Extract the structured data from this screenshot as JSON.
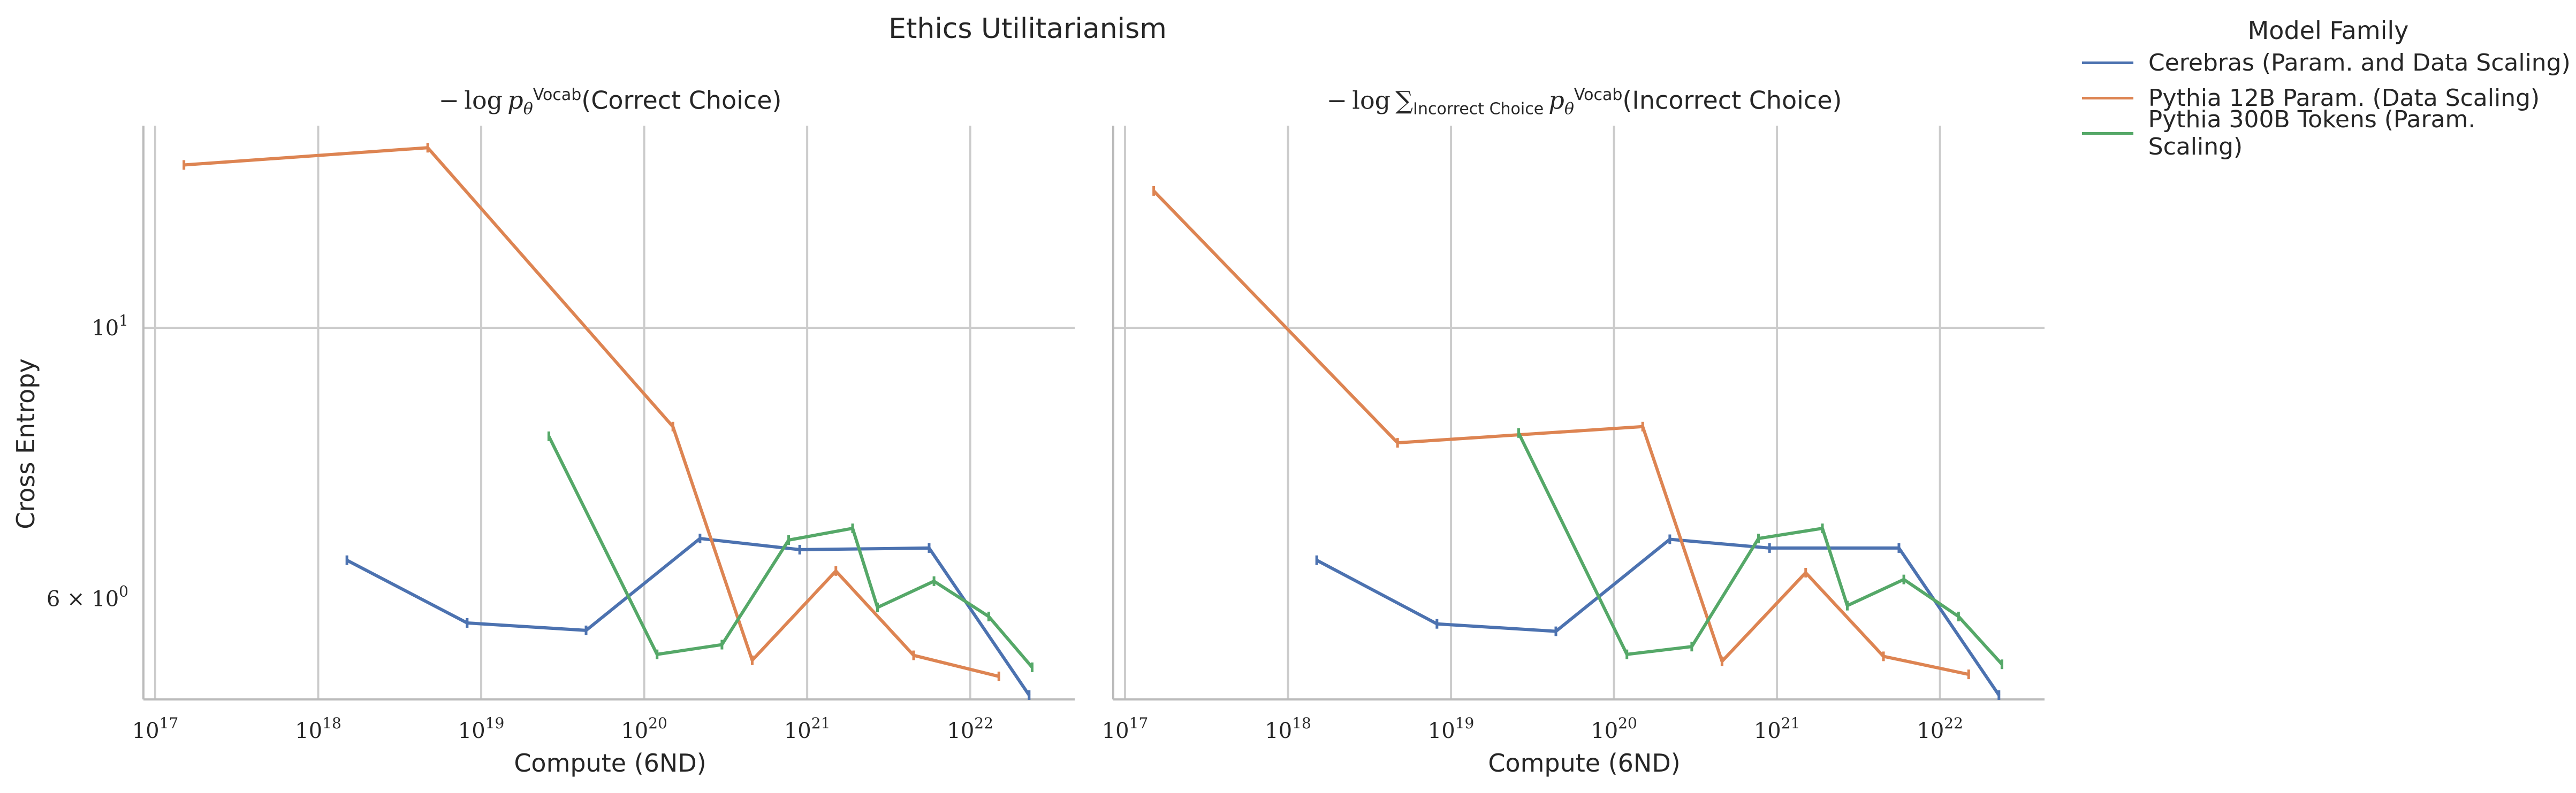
{
  "figure": {
    "title": "Ethics Utilitarianism",
    "ylabel": "Cross Entropy",
    "legend_title": "Model Family"
  },
  "chart_data": [
    {
      "type": "line",
      "title": "−log p_θ^Vocab(Correct Choice)",
      "xlabel": "Compute (6ND)",
      "ylabel": "Cross Entropy",
      "x_scale": "log",
      "y_scale": "log",
      "xlim": [
        1e+17,
        4e+22
      ],
      "ylim": [
        5.0,
        14.5
      ],
      "x_ticks": [
        1e+17,
        1e+18,
        1e+19,
        1e+20,
        1e+21,
        1e+22
      ],
      "x_tick_labels": [
        [
          "10",
          "17"
        ],
        [
          "10",
          "18"
        ],
        [
          "10",
          "19"
        ],
        [
          "10",
          "20"
        ],
        [
          "10",
          "21"
        ],
        [
          "10",
          "22"
        ]
      ],
      "y_ticks": [
        6,
        10
      ],
      "y_tick_labels": [
        [
          "6 × 10",
          "0"
        ],
        [
          "10",
          "1"
        ]
      ],
      "grid": true,
      "legend": "outside-right",
      "series": [
        {
          "name": "Cerebras (Param. and Data Scaling)",
          "color": "#4c72b0",
          "x": [
            1.5e+18,
            8.2e+18,
            4.4e+19,
            2.2e+20,
            9e+20,
            5.6e+21,
            2.3e+22
          ],
          "y": [
            6.45,
            5.73,
            5.65,
            6.72,
            6.58,
            6.6,
            5.0
          ]
        },
        {
          "name": "Pythia 12B Param. (Data Scaling)",
          "color": "#dd8452",
          "x": [
            1.5e+17,
            4.7e+18,
            1.5e+20,
            4.6e+20,
            1.5e+21,
            4.5e+21,
            1.5e+22
          ],
          "y": [
            13.6,
            14.05,
            8.3,
            5.34,
            6.32,
            5.39,
            5.18
          ]
        },
        {
          "name": "Pythia 300B Tokens (Param. Scaling)",
          "color": "#55a868",
          "x": [
            2.6e+19,
            1.2e+20,
            3e+20,
            7.7e+20,
            1.9e+21,
            2.7e+21,
            6e+21,
            1.3e+22,
            2.4e+22
          ],
          "y": [
            8.15,
            5.4,
            5.5,
            6.7,
            6.85,
            5.9,
            6.2,
            5.8,
            5.27
          ]
        }
      ]
    },
    {
      "type": "line",
      "title": "−log Σ_Incorrect Choice p_θ^Vocab(Incorrect Choice)",
      "xlabel": "Compute (6ND)",
      "ylabel": "",
      "x_scale": "log",
      "y_scale": "log",
      "xlim": [
        1e+17,
        4e+22
      ],
      "ylim": [
        5.0,
        14.5
      ],
      "x_ticks": [
        1e+17,
        1e+18,
        1e+19,
        1e+20,
        1e+21,
        1e+22
      ],
      "x_tick_labels": [
        [
          "10",
          "17"
        ],
        [
          "10",
          "18"
        ],
        [
          "10",
          "19"
        ],
        [
          "10",
          "20"
        ],
        [
          "10",
          "21"
        ],
        [
          "10",
          "22"
        ]
      ],
      "y_ticks": [],
      "y_tick_labels": [],
      "grid": true,
      "legend": "",
      "series": [
        {
          "name": "Cerebras (Param. and Data Scaling)",
          "color": "#4c72b0",
          "x": [
            1.5e+18,
            8.2e+18,
            4.4e+19,
            2.2e+20,
            9e+20,
            5.6e+21,
            2.3e+22
          ],
          "y": [
            6.45,
            5.72,
            5.64,
            6.71,
            6.6,
            6.6,
            5.0
          ]
        },
        {
          "name": "Pythia 12B Param. (Data Scaling)",
          "color": "#dd8452",
          "x": [
            1.5e+17,
            4.7e+18,
            1.5e+20,
            4.6e+20,
            1.5e+21,
            4.5e+21,
            1.5e+22
          ],
          "y": [
            12.95,
            8.05,
            8.3,
            5.33,
            6.3,
            5.38,
            5.2
          ]
        },
        {
          "name": "Pythia 300B Tokens (Param. Scaling)",
          "color": "#55a868",
          "x": [
            2.6e+19,
            1.2e+20,
            3e+20,
            7.7e+20,
            1.9e+21,
            2.7e+21,
            6e+21,
            1.3e+22,
            2.4e+22
          ],
          "y": [
            8.2,
            5.4,
            5.48,
            6.72,
            6.85,
            5.92,
            6.22,
            5.8,
            5.3
          ]
        }
      ]
    }
  ]
}
